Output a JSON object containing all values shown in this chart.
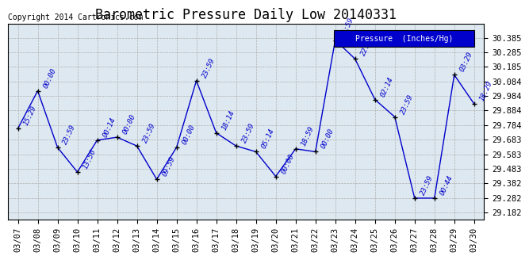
{
  "title": "Barometric Pressure Daily Low 20140331",
  "copyright": "Copyright 2014 Cartronics.com",
  "legend_label": "Pressure  (Inches/Hg)",
  "x_labels": [
    "03/07",
    "03/08",
    "03/09",
    "03/10",
    "03/11",
    "03/12",
    "03/13",
    "03/14",
    "03/15",
    "03/16",
    "03/17",
    "03/18",
    "03/19",
    "03/20",
    "03/21",
    "03/22",
    "03/23",
    "03/24",
    "03/25",
    "03/26",
    "03/27",
    "03/28",
    "03/29",
    "03/30"
  ],
  "y_values": [
    29.76,
    30.02,
    29.63,
    29.46,
    29.68,
    29.7,
    29.64,
    29.41,
    29.63,
    30.09,
    29.73,
    29.64,
    29.6,
    29.43,
    29.62,
    29.6,
    30.37,
    30.24,
    29.96,
    29.84,
    29.28,
    29.28,
    30.13,
    29.93
  ],
  "time_labels": [
    "15:29",
    "00:00",
    "23:59",
    "13:56",
    "00:14",
    "00:00",
    "23:59",
    "09:59",
    "00:00",
    "23:59",
    "18:14",
    "23:59",
    "05:14",
    "00:00",
    "18:59",
    "00:00",
    "19:59",
    "22:29",
    "02:14",
    "23:59",
    "23:59",
    "00:44",
    "03:29",
    "18:29"
  ],
  "ylim_min": 29.132,
  "ylim_max": 30.485,
  "yticks": [
    29.182,
    29.282,
    29.382,
    29.483,
    29.583,
    29.683,
    29.784,
    29.884,
    29.984,
    30.084,
    30.185,
    30.285,
    30.385
  ],
  "line_color": "#0000CC",
  "marker_color": "#000000",
  "plot_bg_color": "#dde8f0",
  "fig_bg_color": "#ffffff",
  "grid_color": "#b0b0b0",
  "title_fontsize": 12,
  "tick_fontsize": 7.5,
  "time_label_color": "#0000CC",
  "time_label_fontsize": 6.5,
  "legend_bg_color": "#0000CC",
  "legend_text_color": "#ffffff",
  "copyright_fontsize": 7
}
